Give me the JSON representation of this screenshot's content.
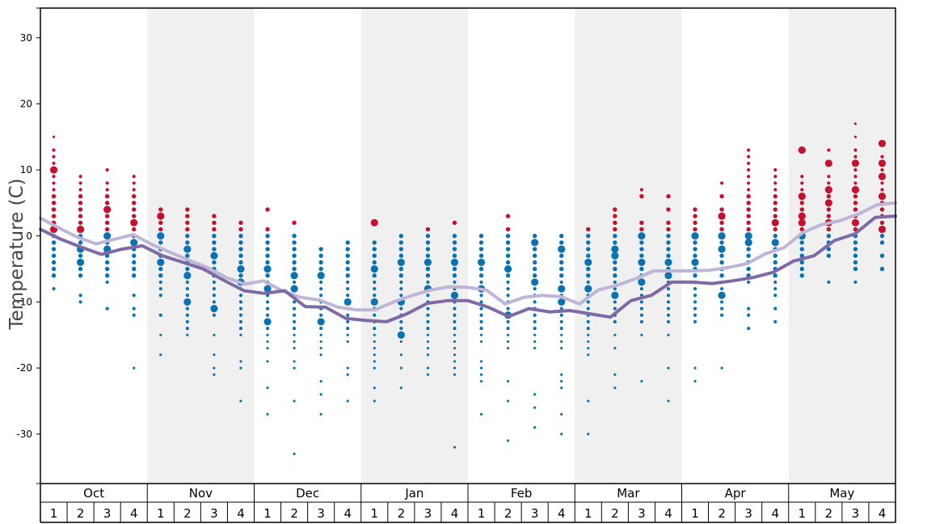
{
  "chart_data": {
    "type": "scatter",
    "title": "",
    "xlabel": "",
    "ylabel": "Temperature (C)",
    "ylim": [
      -37.5,
      34.5
    ],
    "yticks": [
      30,
      20,
      10,
      0,
      -10,
      -20,
      -30
    ],
    "months": [
      "Oct",
      "Nov",
      "Dec",
      "Jan",
      "Feb",
      "Mar",
      "Apr",
      "May"
    ],
    "weeks": [
      "1",
      "2",
      "3",
      "4"
    ],
    "colors": {
      "cold": "#0a72b0",
      "warm": "#c8102e",
      "line_dark": "#7f6aa6",
      "line_light": "#bfb5d6",
      "band": "#f0f0f0",
      "axis": "#000000"
    },
    "series": [
      {
        "name": "Average high",
        "type": "line",
        "values": [
          2.7,
          1.2,
          -0.2,
          -1.2,
          -0.5,
          0.2,
          -1.3,
          -2.5,
          -3.7,
          -4.8,
          -6.3,
          -7.3,
          -6.8,
          -8.3,
          -9.3,
          -9.7,
          -10.8,
          -11.2,
          -11.2,
          -10.0,
          -9.0,
          -8.2,
          -7.7,
          -7.8,
          -8.2,
          -10.3,
          -9.3,
          -9.0,
          -9.2,
          -10.3,
          -8.2,
          -7.5,
          -6.5,
          -5.3,
          -5.3,
          -5.3,
          -5.2,
          -4.8,
          -4.2,
          -2.7,
          -1.8,
          0.5,
          1.7,
          2.3,
          3.3,
          4.7,
          5.0
        ]
      },
      {
        "name": "Average low",
        "type": "line",
        "values": [
          1.0,
          -0.5,
          -1.7,
          -2.8,
          -2.0,
          -1.5,
          -3.0,
          -4.0,
          -5.0,
          -6.7,
          -8.3,
          -8.7,
          -8.3,
          -10.7,
          -10.8,
          -12.5,
          -12.8,
          -13.0,
          -11.8,
          -10.2,
          -9.8,
          -9.8,
          -10.8,
          -12.2,
          -11.0,
          -11.5,
          -11.3,
          -11.8,
          -12.3,
          -9.8,
          -9.0,
          -7.0,
          -7.0,
          -7.2,
          -6.8,
          -6.3,
          -5.5,
          -3.8,
          -3.0,
          -0.7,
          0.3,
          2.8,
          3.0
        ]
      },
      {
        "name": "Observations",
        "type": "scatter",
        "weeks": [
          {
            "values": [
              15,
              13,
              12,
              11,
              10,
              9,
              8,
              7,
              6,
              5,
              4,
              3,
              2,
              1,
              0,
              -1,
              -2,
              -3,
              -4,
              -5,
              -6,
              -8
            ],
            "big": [
              10,
              1
            ]
          },
          {
            "values": [
              9,
              8,
              7,
              6,
              5,
              4,
              3,
              2,
              1,
              0,
              -1,
              -2,
              -3,
              -4,
              -5,
              -6,
              -9,
              -10
            ],
            "big": [
              1,
              -2,
              -4
            ]
          },
          {
            "values": [
              10,
              8,
              7,
              6,
              5,
              4,
              3,
              2,
              1,
              0,
              -1,
              -2,
              -3,
              -4,
              -5,
              -6,
              -7,
              -11
            ],
            "big": [
              4,
              0,
              -2
            ]
          },
          {
            "values": [
              9,
              8,
              7,
              6,
              5,
              4,
              3,
              2,
              1,
              0,
              -1,
              -2,
              -3,
              -4,
              -5,
              -6,
              -9,
              -11,
              -12,
              -20
            ],
            "big": [
              2,
              -1
            ]
          },
          {
            "values": [
              4,
              3,
              2,
              1,
              0,
              -1,
              -2,
              -3,
              -4,
              -5,
              -6,
              -7,
              -8,
              -9,
              -12,
              -15,
              -18
            ],
            "big": [
              3,
              0,
              -4
            ]
          },
          {
            "values": [
              4,
              3,
              2,
              1,
              0,
              -1,
              -2,
              -3,
              -4,
              -5,
              -6,
              -7,
              -8,
              -9,
              -10,
              -11,
              -12,
              -13,
              -14,
              -15
            ],
            "big": [
              -2,
              -6,
              -10
            ]
          },
          {
            "values": [
              3,
              2,
              1,
              0,
              -1,
              -2,
              -3,
              -4,
              -5,
              -6,
              -7,
              -8,
              -9,
              -10,
              -11,
              -12,
              -15,
              -18,
              -20,
              -21
            ],
            "big": [
              -3,
              -11
            ]
          },
          {
            "values": [
              2,
              1,
              0,
              -1,
              -2,
              -3,
              -4,
              -5,
              -6,
              -7,
              -8,
              -9,
              -10,
              -11,
              -12,
              -13,
              -14,
              -15,
              -19,
              -20,
              -25
            ],
            "big": [
              -5,
              -7
            ]
          },
          {
            "values": [
              4,
              1,
              0,
              -1,
              -2,
              -3,
              -4,
              -5,
              -6,
              -7,
              -8,
              -9,
              -10,
              -11,
              -12,
              -13,
              -14,
              -15,
              -16,
              -17,
              -19,
              -23,
              -27
            ],
            "big": [
              -5,
              -8,
              -13
            ]
          },
          {
            "values": [
              2,
              0,
              -1,
              -2,
              -3,
              -4,
              -5,
              -6,
              -7,
              -8,
              -9,
              -10,
              -11,
              -12,
              -13,
              -14,
              -15,
              -16,
              -17,
              -19,
              -20,
              -25,
              -33
            ],
            "big": [
              -6,
              -8
            ]
          },
          {
            "values": [
              -2,
              -3,
              -4,
              -5,
              -6,
              -7,
              -8,
              -9,
              -10,
              -11,
              -12,
              -13,
              -14,
              -15,
              -16,
              -17,
              -18,
              -22,
              -24,
              -27
            ],
            "big": [
              -6,
              -13
            ]
          },
          {
            "values": [
              -1,
              -2,
              -3,
              -4,
              -5,
              -6,
              -7,
              -8,
              -9,
              -10,
              -11,
              -12,
              -13,
              -14,
              -15,
              -16,
              -20,
              -21,
              -25
            ],
            "big": [
              -10
            ]
          },
          {
            "values": [
              2,
              -1,
              -2,
              -3,
              -4,
              -5,
              -6,
              -7,
              -8,
              -9,
              -10,
              -11,
              -12,
              -13,
              -14,
              -15,
              -16,
              -17,
              -18,
              -19,
              -20,
              -23,
              -25
            ],
            "big": [
              2,
              -5,
              -10
            ]
          },
          {
            "values": [
              0,
              -1,
              -2,
              -3,
              -4,
              -5,
              -6,
              -7,
              -8,
              -9,
              -10,
              -11,
              -12,
              -13,
              -14,
              -15,
              -16,
              -18,
              -20,
              -23
            ],
            "big": [
              -4,
              -10,
              -15
            ]
          },
          {
            "values": [
              1,
              0,
              -1,
              -2,
              -3,
              -4,
              -5,
              -6,
              -7,
              -8,
              -9,
              -10,
              -11,
              -12,
              -13,
              -14,
              -15,
              -16,
              -17,
              -18,
              -20,
              -21
            ],
            "big": [
              -4,
              -8
            ]
          },
          {
            "values": [
              2,
              0,
              -1,
              -2,
              -3,
              -4,
              -5,
              -6,
              -7,
              -8,
              -9,
              -10,
              -11,
              -12,
              -13,
              -14,
              -15,
              -16,
              -17,
              -18,
              -19,
              -20,
              -21,
              -32
            ],
            "big": [
              -4,
              -9
            ]
          },
          {
            "values": [
              0,
              -1,
              -2,
              -3,
              -4,
              -5,
              -6,
              -7,
              -8,
              -9,
              -10,
              -11,
              -12,
              -13,
              -14,
              -15,
              -16,
              -19,
              -20,
              -21,
              -22,
              -27
            ],
            "big": [
              -4,
              -8
            ]
          },
          {
            "values": [
              3,
              1,
              0,
              -1,
              -2,
              -3,
              -4,
              -5,
              -6,
              -7,
              -8,
              -9,
              -10,
              -11,
              -12,
              -13,
              -14,
              -15,
              -16,
              -17,
              -22,
              -25,
              -31
            ],
            "big": [
              -5,
              -12
            ]
          },
          {
            "values": [
              0,
              -1,
              -2,
              -3,
              -4,
              -5,
              -6,
              -7,
              -8,
              -9,
              -10,
              -11,
              -12,
              -13,
              -14,
              -15,
              -16,
              -17,
              -24,
              -26,
              -29
            ],
            "big": [
              -1,
              -7
            ]
          },
          {
            "values": [
              0,
              -1,
              -2,
              -3,
              -4,
              -5,
              -6,
              -7,
              -8,
              -9,
              -10,
              -11,
              -12,
              -13,
              -14,
              -15,
              -16,
              -17,
              -21,
              -22,
              -23,
              -27,
              -30
            ],
            "big": [
              -2,
              -8,
              -10
            ]
          },
          {
            "values": [
              1,
              0,
              -1,
              -2,
              -3,
              -4,
              -5,
              -6,
              -7,
              -8,
              -9,
              -10,
              -11,
              -12,
              -13,
              -14,
              -15,
              -16,
              -17,
              -18,
              -25,
              -30
            ],
            "big": [
              -4,
              -8
            ]
          },
          {
            "values": [
              4,
              3,
              2,
              1,
              0,
              -1,
              -2,
              -3,
              -4,
              -5,
              -6,
              -7,
              -8,
              -9,
              -10,
              -11,
              -12,
              -13,
              -15,
              -17,
              -21,
              -23
            ],
            "big": [
              -2,
              -3,
              -9
            ]
          },
          {
            "values": [
              7,
              6,
              2,
              1,
              0,
              -1,
              -2,
              -3,
              -4,
              -5,
              -6,
              -7,
              -8,
              -9,
              -10,
              -11,
              -12,
              -13,
              -15,
              -22
            ],
            "big": [
              0,
              -4,
              -7
            ]
          },
          {
            "values": [
              6,
              4,
              2,
              1,
              0,
              -1,
              -2,
              -3,
              -4,
              -5,
              -6,
              -7,
              -8,
              -9,
              -10,
              -11,
              -12,
              -13,
              -15,
              -20,
              -25
            ],
            "big": [
              -4,
              -6
            ]
          },
          {
            "values": [
              4,
              3,
              2,
              1,
              0,
              -1,
              -2,
              -3,
              -4,
              -5,
              -6,
              -7,
              -8,
              -9,
              -10,
              -11,
              -12,
              -13,
              -20,
              -22
            ],
            "big": [
              -4,
              0
            ]
          },
          {
            "values": [
              8,
              6,
              4,
              3,
              2,
              1,
              0,
              -1,
              -2,
              -3,
              -4,
              -5,
              -6,
              -7,
              -8,
              -9,
              -10,
              -11,
              -12,
              -20
            ],
            "big": [
              3,
              0,
              -2,
              -9
            ]
          },
          {
            "values": [
              13,
              12,
              11,
              10,
              9,
              8,
              7,
              6,
              5,
              4,
              3,
              2,
              1,
              0,
              -1,
              -2,
              -3,
              -4,
              -5,
              -6,
              -7,
              -11,
              -12,
              -14
            ],
            "big": [
              -1,
              0
            ]
          },
          {
            "values": [
              10,
              9,
              8,
              7,
              6,
              5,
              4,
              3,
              2,
              1,
              0,
              -1,
              -2,
              -3,
              -4,
              -5,
              -6,
              -7,
              -8,
              -9,
              -11,
              -13
            ],
            "big": [
              2,
              -1
            ]
          },
          {
            "values": [
              13,
              9,
              8,
              7,
              6,
              5,
              4,
              3,
              2,
              1,
              0,
              -1,
              -2,
              -3,
              -4,
              -5,
              -6
            ],
            "big": [
              13,
              6,
              3,
              2,
              0
            ]
          },
          {
            "values": [
              13,
              11,
              9,
              8,
              7,
              6,
              5,
              4,
              3,
              2,
              1,
              0,
              -1,
              -2,
              -3,
              -7
            ],
            "big": [
              11,
              7,
              5,
              2
            ]
          },
          {
            "values": [
              17,
              15,
              13,
              12,
              11,
              10,
              9,
              8,
              7,
              6,
              5,
              4,
              3,
              2,
              1,
              0,
              -1,
              -2,
              -3,
              -4,
              -5,
              -7
            ],
            "big": [
              11,
              7,
              2
            ]
          },
          {
            "values": [
              14,
              12,
              11,
              10,
              9,
              8,
              7,
              6,
              5,
              4,
              3,
              2,
              1,
              0,
              -1,
              -3,
              -5
            ],
            "big": [
              14,
              11,
              9,
              6,
              1
            ]
          }
        ]
      }
    ]
  }
}
